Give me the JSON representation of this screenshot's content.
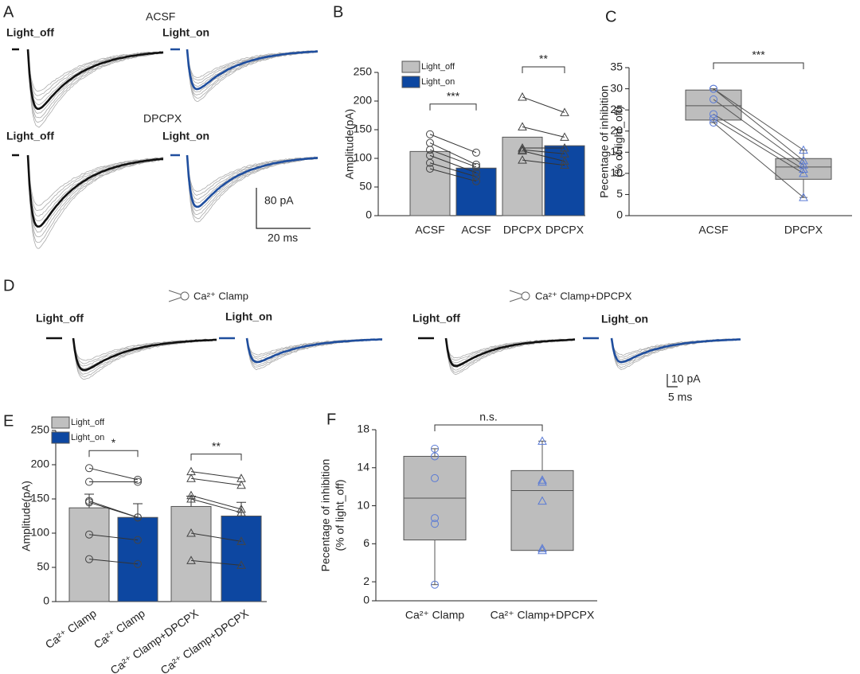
{
  "panel_labels": [
    "A",
    "B",
    "C",
    "D",
    "E",
    "F"
  ],
  "traces": [
    {
      "conditions": [
        "ACSF",
        "DPCPX"
      ],
      "labels": [
        "Light_off",
        "Light_on",
        "Light_off",
        "Light_on"
      ],
      "scale_labels": [
        "80 pA",
        "20 ms"
      ]
    },
    {
      "conditions": [
        "Ca²⁺ Clamp",
        "Ca²⁺ Clamp+DPCPX"
      ],
      "labels": [
        "Light_off",
        "Light_on",
        "Light_off",
        "Light_on"
      ],
      "scale_labels": [
        "10 pA",
        "5 ms"
      ]
    }
  ],
  "chart_data": [
    {
      "type": "bar",
      "ylabel": "Amplitude(pA)",
      "categories": [
        "ACSF",
        "ACSF",
        "DPCPX",
        "DPCPX"
      ],
      "markers": [
        "circle",
        "circle",
        "triangle",
        "triangle"
      ],
      "series": [
        {
          "name": "Light_off",
          "color": "#c0c0c0",
          "values": [
            112,
            null,
            137,
            null
          ],
          "points": [
            [
              142,
              127,
              115,
              105,
              92,
              82
            ],
            null,
            [
              207,
              155,
              118,
              115,
              113,
              97
            ],
            null
          ]
        },
        {
          "name": "Light_on",
          "color": "#0d47a1",
          "values": [
            null,
            83,
            null,
            122
          ],
          "points": [
            null,
            [
              110,
              89,
              85,
              75,
              68,
              60
            ],
            null,
            [
              180,
              137,
              118,
              108,
              95,
              88
            ]
          ]
        }
      ],
      "significance": [
        "***",
        "**"
      ],
      "ylim": [
        0,
        250
      ],
      "yticks": [
        0,
        50,
        100,
        150,
        200,
        250
      ]
    },
    {
      "type": "box",
      "ylabel": [
        "Pecentage of inhibition",
        "(% of light_off)"
      ],
      "categories": [
        "ACSF",
        "DPCPX"
      ],
      "color": "#bdbdbd",
      "point_color": "#5b7bd5",
      "markers": [
        "circle",
        "triangle"
      ],
      "paired": true,
      "boxes": [
        {
          "whisker_low": 22,
          "q1": 22.6,
          "median": 26,
          "q3": 29.7,
          "whisker_high": 30
        },
        {
          "whisker_low": 4.3,
          "q1": 8.6,
          "median": 11.5,
          "q3": 13.5,
          "whisker_high": 15.5
        }
      ],
      "points": [
        [
          30,
          30,
          27.5,
          24,
          23,
          22
        ],
        [
          15.5,
          13,
          12,
          11,
          10,
          4.3
        ]
      ],
      "significance": [
        "***"
      ],
      "ylim": [
        0,
        35
      ],
      "yticks": [
        0,
        5,
        10,
        15,
        20,
        25,
        30,
        35
      ]
    },
    {
      "type": "bar",
      "ylabel": "Amplitude(pA)",
      "categories": [
        "Ca²⁺ Clamp",
        "Ca²⁺ Clamp",
        "Ca²⁺ Clamp+DPCPX",
        "Ca²⁺ Clamp+DPCPX"
      ],
      "markers": [
        "circle",
        "circle",
        "triangle",
        "triangle"
      ],
      "series": [
        {
          "name": "Light_off",
          "color": "#c0c0c0",
          "values": [
            137,
            null,
            139,
            null
          ],
          "errors": [
            20,
            null,
            15,
            null
          ],
          "points": [
            [
              195,
              175,
              147,
              145,
              98,
              62
            ],
            null,
            [
              190,
              180,
              155,
              150,
              100,
              60
            ],
            null
          ]
        },
        {
          "name": "Light_on",
          "color": "#0d47a1",
          "values": [
            null,
            123,
            null,
            125
          ],
          "errors": [
            null,
            20,
            null,
            20
          ],
          "points": [
            null,
            [
              178,
              175,
              123,
              123,
              90,
              55
            ],
            null,
            [
              180,
              170,
              135,
              130,
              88,
              53
            ]
          ]
        }
      ],
      "significance": [
        "*",
        "**"
      ],
      "ylim": [
        0,
        250
      ],
      "yticks": [
        0,
        50,
        100,
        150,
        200,
        250
      ]
    },
    {
      "type": "box",
      "ylabel": [
        "Pecentage of inhibition",
        "(% of light_off)"
      ],
      "categories": [
        "Ca²⁺ Clamp",
        "Ca²⁺ Clamp+DPCPX"
      ],
      "color": "#bdbdbd",
      "point_color": "#5b7bd5",
      "markers": [
        "circle",
        "triangle"
      ],
      "paired": false,
      "boxes": [
        {
          "whisker_low": 1.7,
          "q1": 6.4,
          "median": 10.8,
          "q3": 15.2,
          "whisker_high": 16
        },
        {
          "whisker_low": 5.3,
          "q1": 5.3,
          "median": 11.6,
          "q3": 13.7,
          "whisker_high": 16.8
        }
      ],
      "points": [
        [
          16,
          15.2,
          12.9,
          8.7,
          8.1,
          1.7
        ],
        [
          16.8,
          12.7,
          12.5,
          10.5,
          5.5,
          5.3
        ]
      ],
      "significance": [
        "n.s."
      ],
      "ylim": [
        0,
        18
      ],
      "yticks": [
        0,
        2,
        6,
        10,
        14,
        18
      ]
    }
  ]
}
